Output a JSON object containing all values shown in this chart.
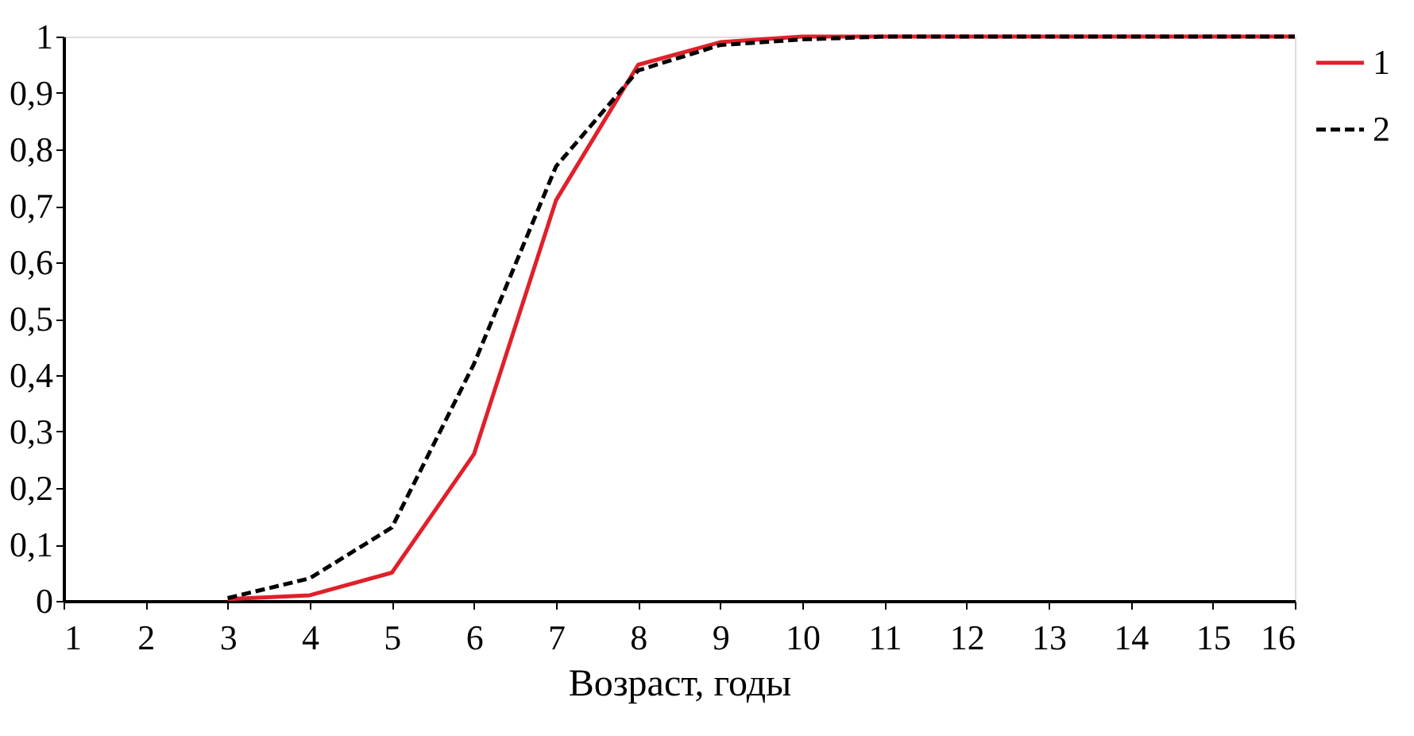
{
  "chart_data": {
    "type": "line",
    "xlabel": "Возраст, годы",
    "x": [
      3,
      4,
      5,
      6,
      7,
      8,
      9,
      10,
      11,
      12,
      13,
      14,
      15,
      16
    ],
    "series": [
      {
        "name": "1",
        "color": "#e0202a",
        "line_style": "solid",
        "values": [
          0.003,
          0.01,
          0.05,
          0.26,
          0.71,
          0.95,
          0.99,
          1,
          1,
          1,
          1,
          1,
          1,
          1
        ]
      },
      {
        "name": "2",
        "color": "#000000",
        "line_style": "dashed",
        "values": [
          0.005,
          0.04,
          0.13,
          0.42,
          0.77,
          0.94,
          0.985,
          0.995,
          1,
          1,
          1,
          1,
          1,
          1
        ]
      }
    ],
    "xlim": [
      1,
      16
    ],
    "xticks": [
      1,
      2,
      3,
      4,
      5,
      6,
      7,
      8,
      9,
      10,
      11,
      12,
      13,
      14,
      15,
      16
    ],
    "ylim": [
      0,
      1
    ],
    "yticks": [
      0,
      {
        "value": 0.1,
        "label": "0,1"
      },
      {
        "value": 0.2,
        "label": "0,2"
      },
      {
        "value": 0.3,
        "label": "0,3"
      },
      {
        "value": 0.4,
        "label": "0,4"
      },
      {
        "value": 0.5,
        "label": "0,5"
      },
      {
        "value": 0.6,
        "label": "0,6"
      },
      {
        "value": 0.7,
        "label": "0,7"
      },
      {
        "value": 0.8,
        "label": "0,8"
      },
      {
        "value": 0.9,
        "label": "0,9"
      },
      1
    ],
    "grid": false,
    "legend": "right",
    "marker": "none"
  }
}
